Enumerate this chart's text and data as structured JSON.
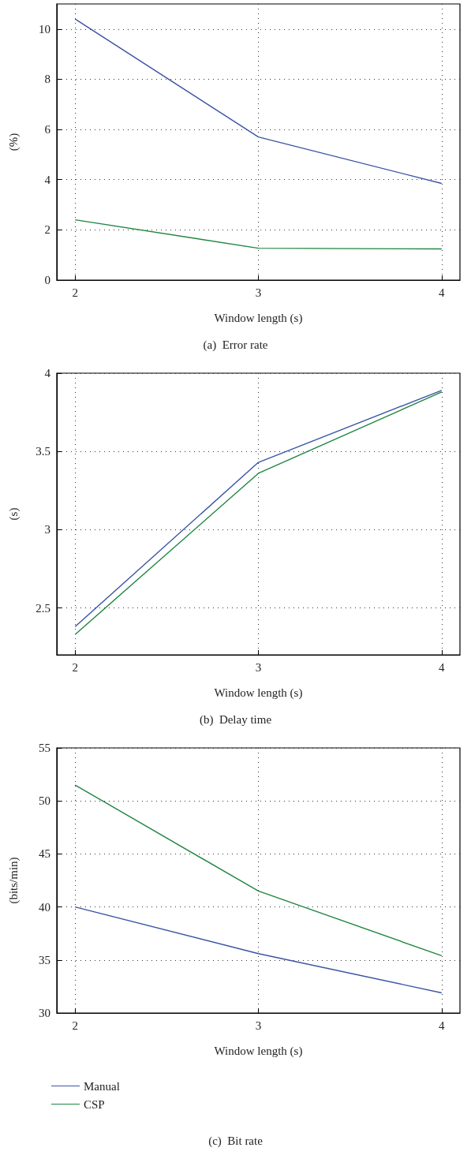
{
  "chart_data": [
    {
      "type": "line",
      "title": "(a)  Error rate",
      "xlabel": "Window length (s)",
      "ylabel": "(%)",
      "x": [
        2,
        3,
        4
      ],
      "xlim": [
        1.9,
        4.1
      ],
      "xticks": [
        2,
        3,
        4
      ],
      "ylim": [
        0,
        11
      ],
      "yticks": [
        0,
        2,
        4,
        6,
        8,
        10
      ],
      "grid": true,
      "legend": false,
      "marker": "none",
      "line_style": "solid",
      "series": [
        {
          "color": "#3a54a4",
          "values": [
            10.4,
            5.7,
            3.85
          ]
        },
        {
          "color": "#1e8540",
          "values": [
            2.4,
            1.27,
            1.24
          ]
        }
      ]
    },
    {
      "type": "line",
      "title": "(b)  Delay time",
      "xlabel": "Window length (s)",
      "ylabel": "(s)",
      "x": [
        2,
        3,
        4
      ],
      "xlim": [
        1.9,
        4.1
      ],
      "xticks": [
        2,
        3,
        4
      ],
      "ylim": [
        2.2,
        4
      ],
      "yticks": [
        2.5,
        3,
        3.5,
        4
      ],
      "grid": true,
      "legend": false,
      "marker": "none",
      "line_style": "solid",
      "series": [
        {
          "color": "#3a54a4",
          "values": [
            2.38,
            3.43,
            3.89
          ]
        },
        {
          "color": "#1e8540",
          "values": [
            2.33,
            3.36,
            3.88
          ]
        }
      ]
    },
    {
      "type": "line",
      "title": "(c)  Bit rate",
      "xlabel": "Window length (s)",
      "ylabel": "(bits/min)",
      "x": [
        2,
        3,
        4
      ],
      "xlim": [
        1.9,
        4.1
      ],
      "xticks": [
        2,
        3,
        4
      ],
      "ylim": [
        30,
        55
      ],
      "yticks": [
        30,
        35,
        40,
        45,
        50,
        55
      ],
      "grid": true,
      "legend": "bottom",
      "marker": "none",
      "line_style": "solid",
      "series": [
        {
          "name": "Manual",
          "color": "#3a54a4",
          "values": [
            40,
            35.6,
            31.9
          ]
        },
        {
          "name": "CSP",
          "color": "#1e8540",
          "values": [
            51.5,
            41.5,
            35.4
          ]
        }
      ]
    }
  ]
}
